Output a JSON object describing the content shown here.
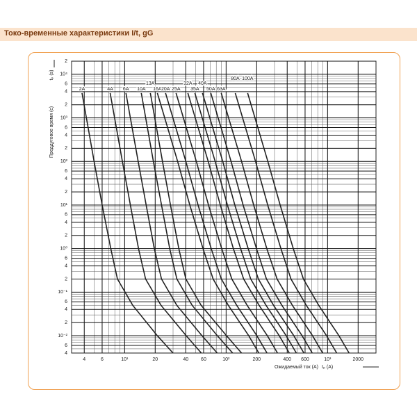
{
  "chart_data": {
    "type": "line",
    "title": "Токо-временные характеристики  I/t, gG",
    "ylabel": "Преддуговое время (с)",
    "ylabel_symbol": "tₚ (s)",
    "xlabel": "Ожидаемый ток (А)",
    "xlabel_symbol": "Iₚ (A)",
    "log_x": true,
    "log_y": true,
    "grid": true,
    "color": "#222222",
    "xlim": [
      3,
      3000
    ],
    "ylim": [
      0.004,
      20000
    ],
    "xticks": [
      4,
      6,
      {
        "value": 10,
        "label": "10¹"
      },
      20,
      40,
      60,
      {
        "value": 100,
        "label": "10²"
      },
      200,
      400,
      600,
      {
        "value": 1000,
        "label": "10³"
      },
      2000
    ],
    "xtick_labels_short": null,
    "yticks": [
      {
        "value": 0.004,
        "label": "4"
      },
      {
        "value": 0.006,
        "label": "6"
      },
      {
        "value": 0.01,
        "label": "10⁻²"
      },
      {
        "value": 0.02,
        "label": "2"
      },
      {
        "value": 0.04,
        "label": "4"
      },
      {
        "value": 0.06,
        "label": "6"
      },
      {
        "value": 0.1,
        "label": "10⁻¹"
      },
      {
        "value": 0.2,
        "label": "2"
      },
      {
        "value": 0.4,
        "label": "4"
      },
      {
        "value": 0.6,
        "label": "6"
      },
      {
        "value": 1,
        "label": "10⁰"
      },
      2,
      4,
      6,
      {
        "value": 10,
        "label": "10¹"
      },
      {
        "value": 20,
        "label": "2"
      },
      {
        "value": 40,
        "label": "4"
      },
      {
        "value": 60,
        "label": "6"
      },
      {
        "value": 100,
        "label": "10²"
      },
      {
        "value": 200,
        "label": "2"
      },
      {
        "value": 400,
        "label": "4"
      },
      {
        "value": 600,
        "label": "6"
      },
      {
        "value": 1000,
        "label": "10³"
      },
      {
        "value": 2000,
        "label": "2"
      },
      {
        "value": 4000,
        "label": "4"
      },
      {
        "value": 6000,
        "label": "6"
      },
      {
        "value": 10000,
        "label": "10⁴"
      },
      {
        "value": 20000,
        "label": "2"
      }
    ],
    "series": [
      {
        "name": "2A",
        "x": [
          3.8,
          5.0,
          6.0,
          7.3,
          8.5,
          12,
          21,
          30
        ],
        "values": [
          3700,
          100,
          10,
          1,
          0.2,
          0.05,
          0.01,
          0.004
        ]
      },
      {
        "name": "4A",
        "x": [
          7.2,
          9.5,
          11.4,
          13.7,
          16.1,
          22.8,
          40.5,
          57
        ],
        "values": [
          3700,
          100,
          10,
          1,
          0.2,
          0.05,
          0.01,
          0.004
        ]
      },
      {
        "name": "6A",
        "x": [
          10.3,
          13.6,
          16.3,
          19.6,
          23.1,
          32.6,
          57.9,
          81.8
        ],
        "values": [
          3700,
          100,
          10,
          1,
          0.2,
          0.05,
          0.01,
          0.004
        ]
      },
      {
        "name": "10A",
        "x": [
          14.6,
          19.2,
          23.1,
          27.8,
          32.7,
          46.2,
          82.1,
          116
        ],
        "values": [
          3700,
          100,
          10,
          1,
          0.2,
          0.05,
          0.01,
          0.004
        ]
      },
      {
        "name": "13A",
        "x": [
          17.9,
          23.6,
          28.3,
          34.2,
          40.1,
          56.6,
          101,
          142
        ],
        "values": [
          3700,
          100,
          10,
          1,
          0.2,
          0.05,
          0.01,
          0.004
        ]
      },
      {
        "name": "16A",
        "x": [
          21,
          33.3,
          43.9,
          59.2,
          74.5,
          105,
          167,
          210
        ],
        "values": [
          3700,
          100,
          10,
          1,
          0.2,
          0.05,
          0.01,
          0.004
        ]
      },
      {
        "name": "20A",
        "x": [
          25.3,
          40.1,
          52.9,
          71.3,
          89.8,
          127,
          201,
          253
        ],
        "values": [
          3700,
          100,
          10,
          1,
          0.2,
          0.05,
          0.01,
          0.004
        ]
      },
      {
        "name": "25A",
        "x": [
          32.1,
          50.9,
          67.1,
          90.5,
          114,
          161,
          255,
          321
        ],
        "values": [
          3700,
          100,
          10,
          1,
          0.2,
          0.05,
          0.01,
          0.004
        ]
      },
      {
        "name": "32A",
        "x": [
          42,
          66.6,
          87.7,
          118,
          149,
          211,
          334,
          420
        ],
        "values": [
          3700,
          100,
          10,
          1,
          0.2,
          0.05,
          0.01,
          0.004
        ]
      },
      {
        "name": "35A",
        "x": [
          49.2,
          78,
          103,
          139,
          175,
          247,
          391,
          492
        ],
        "values": [
          3700,
          100,
          10,
          1,
          0.2,
          0.05,
          0.01,
          0.004
        ]
      },
      {
        "name": "40A",
        "x": [
          58.5,
          92.7,
          122,
          165,
          208,
          293,
          465,
          585
        ],
        "values": [
          3700,
          100,
          10,
          1,
          0.2,
          0.05,
          0.01,
          0.004
        ]
      },
      {
        "name": "50A",
        "x": [
          70.6,
          112,
          147,
          199,
          250,
          354,
          561,
          706
        ],
        "values": [
          3700,
          100,
          10,
          1,
          0.2,
          0.05,
          0.01,
          0.004
        ]
      },
      {
        "name": "63A",
        "x": [
          89.5,
          142,
          187,
          252,
          318,
          449,
          711,
          895
        ],
        "values": [
          3700,
          100,
          10,
          1,
          0.2,
          0.05,
          0.01,
          0.004
        ]
      },
      {
        "name": "80A",
        "x": [
          123,
          195,
          257,
          347,
          436,
          616,
          977,
          1230
        ],
        "values": [
          3700,
          100,
          10,
          1,
          0.2,
          0.05,
          0.01,
          0.004
        ]
      },
      {
        "name": "100A",
        "x": [
          163,
          258,
          341,
          459,
          578,
          817,
          1295,
          1630
        ],
        "values": [
          3700,
          100,
          10,
          1,
          0.2,
          0.05,
          0.01,
          0.004
        ]
      }
    ]
  }
}
